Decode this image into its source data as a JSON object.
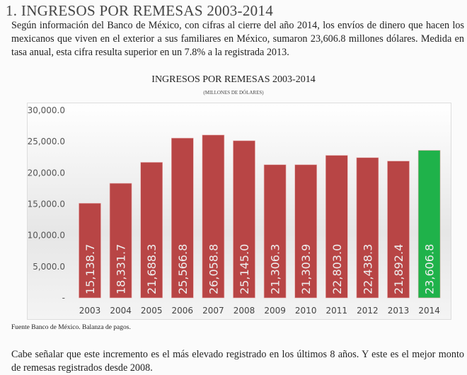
{
  "heading": "1. INGRESOS POR REMESAS 2003-2014",
  "intro": "Según información del Banco de México, con cifras al cierre del año 2014, los envíos de dinero que hacen los mexicanos que viven en el exterior a sus familiares en México, sumaron 23,606.8 millones dólares. Medida en tasa anual, esta cifra resulta superior en un 7.8% a la registrada 2013.",
  "source": "Fuente Banco de México. Balanza de pagos.",
  "closing": "Cabe señalar que este incremento es el más elevado registrado en los últimos 8 años. Y este es el mejor monto de remesas registrados desde 2008.",
  "chart_data": {
    "type": "bar",
    "title": "INGRESOS POR REMESAS 2003-2014",
    "subtitle": "(MILLONES DE DÓLARES)",
    "categories": [
      "2003",
      "2004",
      "2005",
      "2006",
      "2007",
      "2008",
      "2009",
      "2010",
      "2011",
      "2012",
      "2013",
      "2014"
    ],
    "values": [
      15138.7,
      18331.7,
      21688.3,
      25566.8,
      26058.8,
      25145.0,
      21306.3,
      21303.9,
      22803.0,
      22438.3,
      21892.4,
      23606.8
    ],
    "data_labels": [
      "15,138.7",
      "18,331.7",
      "21,688.3",
      "25,566.8",
      "26,058.8",
      "25,145.0",
      "21,306.3",
      "21,303.9",
      "22,803.0",
      "22,438.3",
      "21,892.4",
      "23,606.8"
    ],
    "yticks": [
      0,
      5000,
      10000,
      15000,
      20000,
      25000,
      30000
    ],
    "ytick_labels": [
      "-",
      "5,000.0",
      "10,000.0",
      "15,000.0",
      "20,000.0",
      "25,000.0",
      "30,000.0"
    ],
    "ylim": [
      0,
      30000
    ],
    "colors": {
      "default": "#b84545",
      "highlight": "#1fb24a"
    },
    "highlight": "2014"
  }
}
